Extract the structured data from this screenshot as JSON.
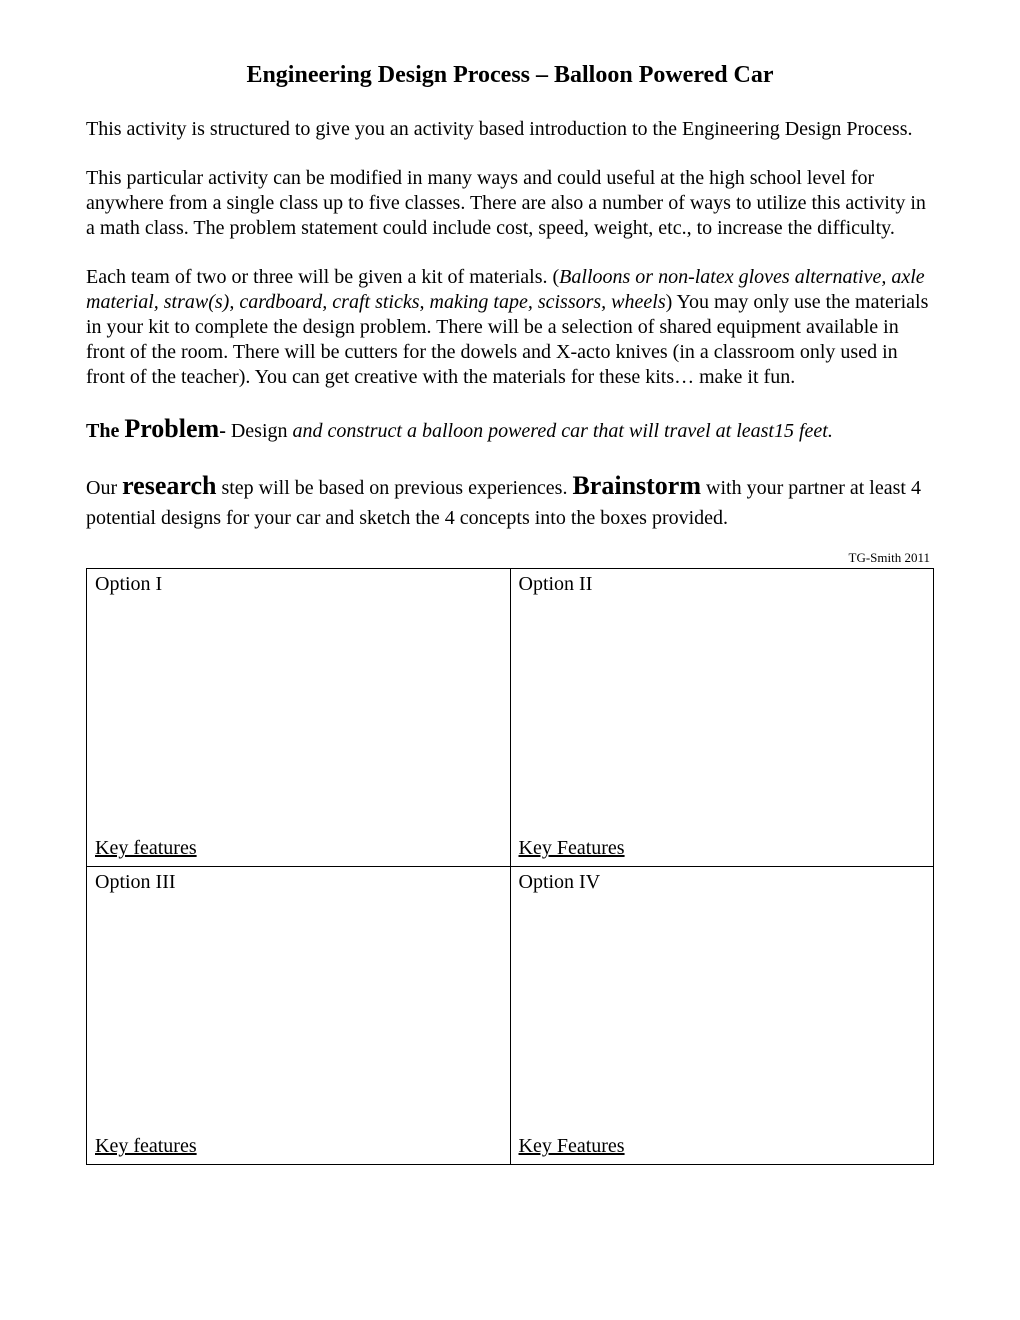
{
  "title": "Engineering Design Process – Balloon Powered Car",
  "para1": "This activity is structured to give you an activity based introduction to the Engineering Design Process.",
  "para2": "This particular activity can be modified in many ways and could useful at the high school level for anywhere from a single class up to five classes.  There are also a number of ways to utilize this activity in a math class. The problem statement could include cost, speed, weight, etc., to increase the difficulty.",
  "para3_a": "Each team of two or three will be given a kit of materials. (",
  "para3_b": "Balloons or non-latex gloves alternative, axle material, straw(s), cardboard, craft sticks, making tape, scissors, wheels",
  "para3_c": ") You may only use the materials in your kit to complete the design problem.  There will be a selection of shared equipment available in front of the room. There will be cutters for the dowels and X-acto knives (in a classroom only used in front of the teacher). You can get creative with the materials for these kits… make it fun.",
  "problem_prefix": "The ",
  "problem_word": "Problem",
  "problem_dash": "- ",
  "problem_design": "Design ",
  "problem_rest": "and construct a balloon powered car that will travel at least15 feet.",
  "research_a": "Our ",
  "research_word": "research",
  "research_b": " step will be based on previous experiences. ",
  "brainstorm_word": "Brainstorm",
  "research_c": " with your partner at least 4 potential designs for your car and sketch the 4 concepts into the boxes provided.",
  "attribution": "TG-Smith 2011",
  "options": {
    "o1": "Option I",
    "o2": "Option II",
    "o3": "Option III",
    "o4": "Option IV"
  },
  "keyfeatures": {
    "k1": "Key features",
    "k2": "Key Features",
    "k3": "Key features",
    "k4": "Key Features"
  }
}
